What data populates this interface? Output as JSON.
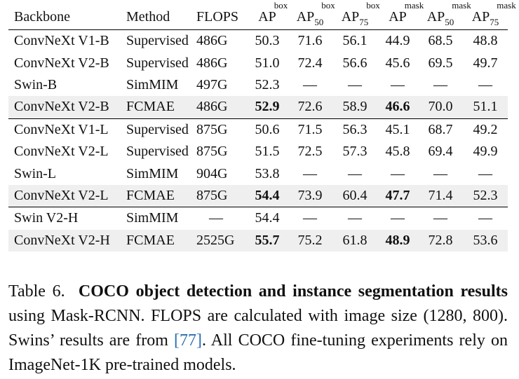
{
  "table": {
    "headers": {
      "backbone": "Backbone",
      "method": "Method",
      "flops": "FLOPS",
      "ap_box": {
        "base": "AP",
        "sup": "box"
      },
      "ap50_box": {
        "base": "AP",
        "sub": "50",
        "sup": "box"
      },
      "ap75_box": {
        "base": "AP",
        "sub": "75",
        "sup": "box"
      },
      "ap_mask": {
        "base": "AP",
        "sup": "mask"
      },
      "ap50_mask": {
        "base": "AP",
        "sub": "50",
        "sup": "mask"
      },
      "ap75_mask": {
        "base": "AP",
        "sub": "75",
        "sup": "mask"
      }
    },
    "rows": [
      {
        "backbone": "ConvNeXt V1-B",
        "method": "Supervised",
        "flops": "486G",
        "ap_box": "50.3",
        "ap50_box": "71.6",
        "ap75_box": "56.1",
        "ap_mask": "44.9",
        "ap50_mask": "68.5",
        "ap75_mask": "48.8"
      },
      {
        "backbone": "ConvNeXt V2-B",
        "method": "Supervised",
        "flops": "486G",
        "ap_box": "51.0",
        "ap50_box": "72.4",
        "ap75_box": "56.6",
        "ap_mask": "45.6",
        "ap50_mask": "69.5",
        "ap75_mask": "49.7"
      },
      {
        "backbone": "Swin-B",
        "method": "SimMIM",
        "flops": "497G",
        "ap_box": "52.3",
        "ap50_box": "—",
        "ap75_box": "—",
        "ap_mask": "—",
        "ap50_mask": "—",
        "ap75_mask": "—"
      },
      {
        "backbone": "ConvNeXt V2-B",
        "method": "FCMAE",
        "flops": "486G",
        "ap_box": "52.9",
        "ap50_box": "72.6",
        "ap75_box": "58.9",
        "ap_mask": "46.6",
        "ap50_mask": "70.0",
        "ap75_mask": "51.1"
      },
      {
        "backbone": "ConvNeXt V1-L",
        "method": "Supervised",
        "flops": "875G",
        "ap_box": "50.6",
        "ap50_box": "71.5",
        "ap75_box": "56.3",
        "ap_mask": "45.1",
        "ap50_mask": "68.7",
        "ap75_mask": "49.2"
      },
      {
        "backbone": "ConvNeXt V2-L",
        "method": "Supervised",
        "flops": "875G",
        "ap_box": "51.5",
        "ap50_box": "72.5",
        "ap75_box": "57.3",
        "ap_mask": "45.8",
        "ap50_mask": "69.4",
        "ap75_mask": "49.9"
      },
      {
        "backbone": "Swin-L",
        "method": "SimMIM",
        "flops": "904G",
        "ap_box": "53.8",
        "ap50_box": "—",
        "ap75_box": "—",
        "ap_mask": "—",
        "ap50_mask": "—",
        "ap75_mask": "—"
      },
      {
        "backbone": "ConvNeXt V2-L",
        "method": "FCMAE",
        "flops": "875G",
        "ap_box": "54.4",
        "ap50_box": "73.9",
        "ap75_box": "60.4",
        "ap_mask": "47.7",
        "ap50_mask": "71.4",
        "ap75_mask": "52.3"
      },
      {
        "backbone": "Swin V2-H",
        "method": "SimMIM",
        "flops": "—",
        "ap_box": "54.4",
        "ap50_box": "—",
        "ap75_box": "—",
        "ap_mask": "—",
        "ap50_mask": "—",
        "ap75_mask": "—"
      },
      {
        "backbone": "ConvNeXt V2-H",
        "method": "FCMAE",
        "flops": "2525G",
        "ap_box": "55.7",
        "ap50_box": "75.2",
        "ap75_box": "61.8",
        "ap_mask": "48.9",
        "ap50_mask": "72.8",
        "ap75_mask": "53.6"
      }
    ]
  },
  "caption": {
    "label": "Table 6.",
    "title": "COCO object detection and instance segmentation results",
    "text_1": " using Mask-RCNN. FLOPS are calculated with image size (1280, 800). Swins’ results are from ",
    "citation": "[77]",
    "text_2": ". All COCO fine-tuning experiments rely on ImageNet-1K pre-trained models."
  }
}
